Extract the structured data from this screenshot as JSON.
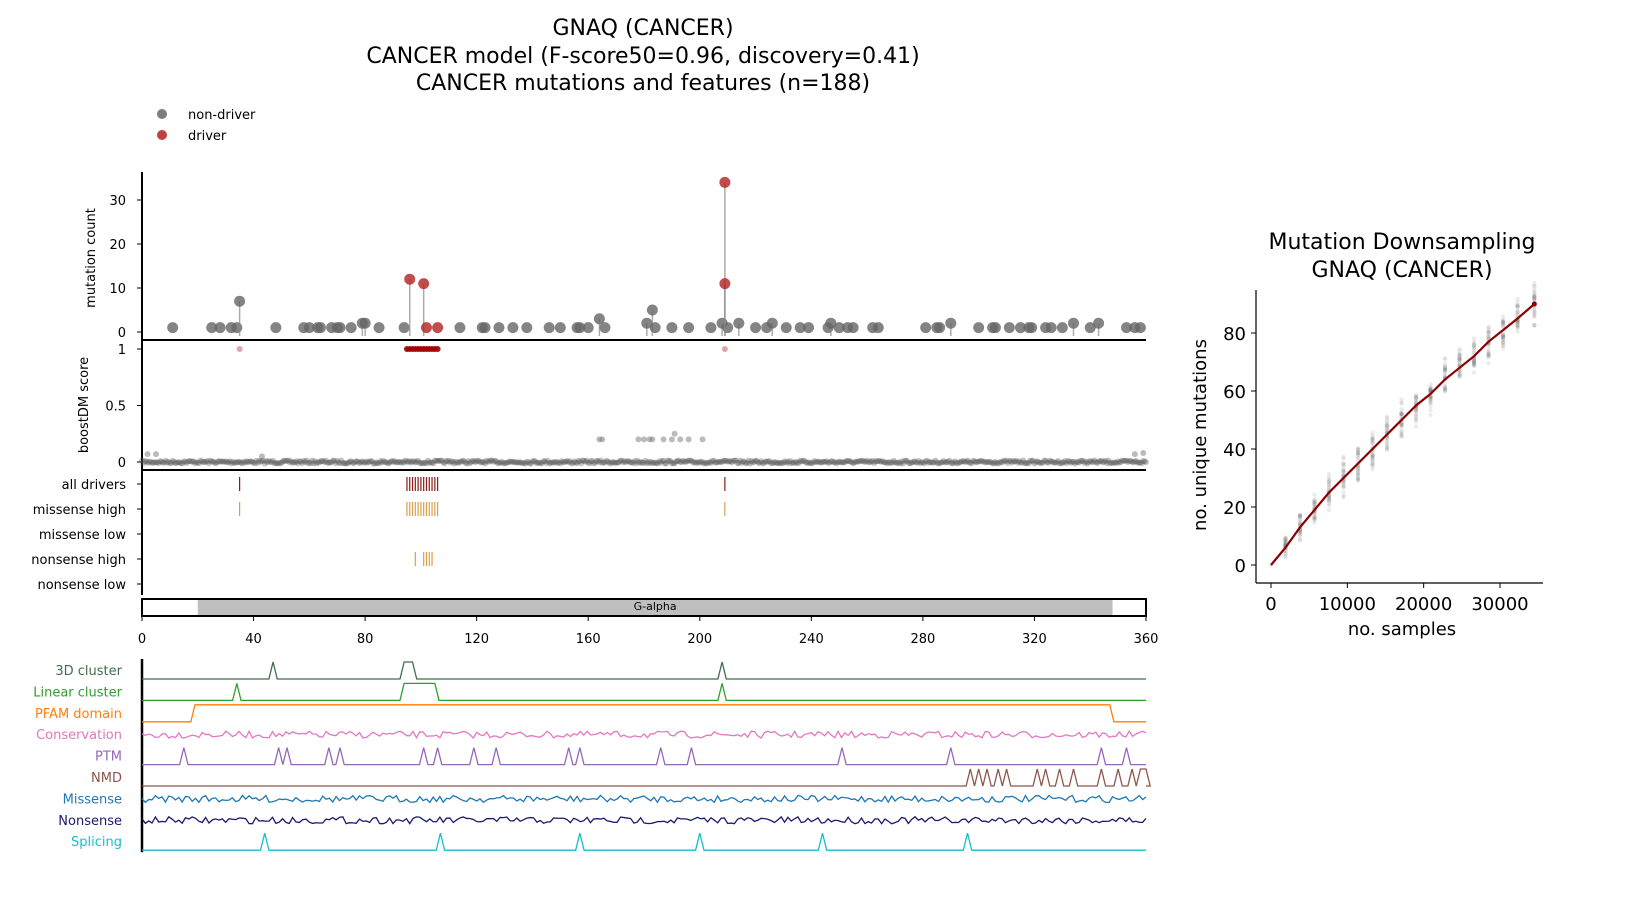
{
  "titles": [
    "GNAQ (CANCER)",
    "CANCER model (F-score50=0.96, discovery=0.41)",
    "CANCER mutations and features (n=188)"
  ],
  "legend": {
    "position": "top-left",
    "items": [
      {
        "label": "non-driver",
        "color": "#666666"
      },
      {
        "label": "driver",
        "color": "#b22222"
      }
    ]
  },
  "chart_data": [
    {
      "type": "scatter",
      "subtype": "lollipop",
      "ylabel": "mutation count",
      "xlim": [
        0,
        360
      ],
      "ylim": [
        0,
        36
      ],
      "yticks": [
        0,
        10,
        20,
        30
      ],
      "xticks": [
        0,
        40,
        80,
        120,
        160,
        200,
        240,
        280,
        320,
        360
      ],
      "series": [
        {
          "name": "non-driver",
          "color": "#666666",
          "points": [
            [
              11,
              1
            ],
            [
              25,
              1
            ],
            [
              28,
              1
            ],
            [
              32,
              1
            ],
            [
              34,
              1
            ],
            [
              35,
              7
            ],
            [
              48,
              1
            ],
            [
              58,
              1
            ],
            [
              60,
              1
            ],
            [
              63,
              1
            ],
            [
              64,
              1
            ],
            [
              68,
              1
            ],
            [
              70,
              1
            ],
            [
              71,
              1
            ],
            [
              75,
              1
            ],
            [
              79,
              2
            ],
            [
              80,
              2
            ],
            [
              85,
              1
            ],
            [
              94,
              1
            ],
            [
              114,
              1
            ],
            [
              122,
              1
            ],
            [
              123,
              1
            ],
            [
              128,
              1
            ],
            [
              133,
              1
            ],
            [
              138,
              1
            ],
            [
              146,
              1
            ],
            [
              150,
              1
            ],
            [
              156,
              1
            ],
            [
              157,
              1
            ],
            [
              160,
              1
            ],
            [
              164,
              3
            ],
            [
              166,
              1
            ],
            [
              181,
              2
            ],
            [
              183,
              5
            ],
            [
              184,
              1
            ],
            [
              190,
              1
            ],
            [
              196,
              1
            ],
            [
              204,
              1
            ],
            [
              208,
              2
            ],
            [
              210,
              1
            ],
            [
              214,
              2
            ],
            [
              220,
              1
            ],
            [
              224,
              1
            ],
            [
              226,
              2
            ],
            [
              231,
              1
            ],
            [
              236,
              1
            ],
            [
              239,
              1
            ],
            [
              246,
              1
            ],
            [
              247,
              2
            ],
            [
              250,
              1
            ],
            [
              253,
              1
            ],
            [
              255,
              1
            ],
            [
              262,
              1
            ],
            [
              264,
              1
            ],
            [
              281,
              1
            ],
            [
              285,
              1
            ],
            [
              286,
              1
            ],
            [
              290,
              2
            ],
            [
              300,
              1
            ],
            [
              305,
              1
            ],
            [
              306,
              1
            ],
            [
              311,
              1
            ],
            [
              315,
              1
            ],
            [
              318,
              1
            ],
            [
              319,
              1
            ],
            [
              324,
              1
            ],
            [
              326,
              1
            ],
            [
              330,
              1
            ],
            [
              334,
              2
            ],
            [
              340,
              1
            ],
            [
              343,
              2
            ],
            [
              353,
              1
            ],
            [
              356,
              1
            ],
            [
              358,
              1
            ]
          ]
        },
        {
          "name": "driver",
          "color": "#b22222",
          "points": [
            [
              96,
              12
            ],
            [
              101,
              11
            ],
            [
              102,
              1
            ],
            [
              106,
              1
            ],
            [
              209,
              34
            ],
            [
              209,
              11
            ]
          ]
        }
      ]
    },
    {
      "type": "scatter",
      "ylabel": "boostDM score",
      "xlim": [
        0,
        360
      ],
      "ylim": [
        0,
        1
      ],
      "yticks": [
        "0",
        "0.5",
        "1"
      ],
      "baseline_score": 0,
      "driver_points": [
        [
          35,
          1
        ],
        [
          95,
          1
        ],
        [
          96,
          1
        ],
        [
          97,
          1
        ],
        [
          98,
          1
        ],
        [
          99,
          1
        ],
        [
          100,
          1
        ],
        [
          101,
          1
        ],
        [
          102,
          1
        ],
        [
          103,
          1
        ],
        [
          104,
          1
        ],
        [
          105,
          1
        ],
        [
          106,
          1
        ],
        [
          209,
          1
        ]
      ],
      "elevated_points": [
        [
          164,
          0.2
        ],
        [
          165,
          0.2
        ],
        [
          178,
          0.2
        ],
        [
          180,
          0.2
        ],
        [
          182,
          0.2
        ],
        [
          183,
          0.2
        ],
        [
          187,
          0.2
        ],
        [
          190,
          0.2
        ],
        [
          191,
          0.25
        ],
        [
          193,
          0.2
        ],
        [
          196,
          0.2
        ],
        [
          201,
          0.2
        ],
        [
          2,
          0.07
        ],
        [
          5,
          0.07
        ],
        [
          43,
          0.05
        ],
        [
          356,
          0.07
        ],
        [
          359,
          0.08
        ]
      ]
    },
    {
      "type": "table",
      "subtype": "tick-tracks",
      "rows": [
        {
          "label": "all drivers",
          "color": "#8b1a1a",
          "positions": [
            35,
            95,
            96,
            97,
            98,
            99,
            100,
            101,
            102,
            103,
            104,
            105,
            106,
            209
          ]
        },
        {
          "label": "missense high",
          "color": "#d9a04a",
          "positions": [
            35,
            95,
            96,
            97,
            98,
            99,
            100,
            101,
            102,
            103,
            104,
            105,
            106,
            209
          ]
        },
        {
          "label": "missense low",
          "color": "#d9a04a",
          "positions": []
        },
        {
          "label": "nonsense high",
          "color": "#d9a04a",
          "positions": [
            98,
            101,
            102,
            103,
            104
          ]
        },
        {
          "label": "nonsense low",
          "color": "#d9a04a",
          "positions": []
        }
      ]
    },
    {
      "type": "bar",
      "subtype": "domain",
      "domains": [
        {
          "label": "G-alpha",
          "start": 20,
          "end": 348,
          "color": "#bfbfbf"
        }
      ],
      "xlim": [
        0,
        360
      ]
    },
    {
      "type": "line",
      "subtype": "feature-tracks",
      "xlim": [
        0,
        360
      ],
      "tracks": [
        {
          "label": "3D cluster",
          "color": "#3f6e4a",
          "kind": "peaks",
          "peaks": [
            [
              47,
              47
            ],
            [
              94,
              97
            ],
            [
              208,
              208
            ]
          ]
        },
        {
          "label": "Linear cluster",
          "color": "#2ca02c",
          "kind": "peaks",
          "peaks": [
            [
              34,
              34
            ],
            [
              94,
              105
            ],
            [
              208,
              208
            ]
          ]
        },
        {
          "label": "PFAM domain",
          "color": "#ff7f0e",
          "kind": "peaks",
          "peaks": [
            [
              19,
              347
            ]
          ]
        },
        {
          "label": "Conservation",
          "color": "#e377c2",
          "kind": "noise"
        },
        {
          "label": "PTM",
          "color": "#9467bd",
          "kind": "peaks",
          "peaks": [
            [
              15,
              15
            ],
            [
              49,
              49
            ],
            [
              52,
              52
            ],
            [
              67,
              67
            ],
            [
              71,
              71
            ],
            [
              101,
              101
            ],
            [
              106,
              106
            ],
            [
              119,
              119
            ],
            [
              127,
              127
            ],
            [
              153,
              153
            ],
            [
              157,
              157
            ],
            [
              186,
              186
            ],
            [
              197,
              197
            ],
            [
              251,
              251
            ],
            [
              290,
              290
            ],
            [
              344,
              344
            ],
            [
              353,
              353
            ]
          ]
        },
        {
          "label": "NMD",
          "color": "#8c564b",
          "kind": "peaks",
          "peaks": [
            [
              297,
              297
            ],
            [
              300,
              300
            ],
            [
              303,
              303
            ],
            [
              307,
              307
            ],
            [
              310,
              310
            ],
            [
              321,
              321
            ],
            [
              324,
              324
            ],
            [
              329,
              329
            ],
            [
              334,
              334
            ],
            [
              344,
              344
            ],
            [
              350,
              350
            ],
            [
              355,
              355
            ],
            [
              358,
              360
            ]
          ]
        },
        {
          "label": "Missense",
          "color": "#1f77b4",
          "kind": "noise"
        },
        {
          "label": "Nonsense",
          "color": "#1a1a6e",
          "kind": "noise"
        },
        {
          "label": "Splicing",
          "color": "#17becf",
          "kind": "peaks",
          "peaks": [
            [
              44,
              44
            ],
            [
              107,
              107
            ],
            [
              157,
              157
            ],
            [
              200,
              200
            ],
            [
              244,
              244
            ],
            [
              296,
              296
            ]
          ]
        }
      ]
    },
    {
      "type": "scatter",
      "title": [
        "Mutation Downsampling",
        "GNAQ (CANCER)"
      ],
      "xlabel": "no. samples",
      "ylabel": "no. unique mutations",
      "xlim": [
        -1500,
        35500
      ],
      "ylim": [
        -4,
        93
      ],
      "xticks": [
        0,
        10000,
        20000,
        30000
      ],
      "yticks": [
        0,
        20,
        40,
        60,
        80
      ],
      "line_color": "#8b0000",
      "mean_curve": [
        [
          0,
          0
        ],
        [
          1900,
          6
        ],
        [
          3800,
          13
        ],
        [
          5700,
          19
        ],
        [
          7600,
          25
        ],
        [
          9500,
          30
        ],
        [
          11400,
          35
        ],
        [
          13300,
          40
        ],
        [
          15200,
          45
        ],
        [
          17100,
          50
        ],
        [
          19000,
          55
        ],
        [
          20900,
          59
        ],
        [
          22800,
          64
        ],
        [
          24700,
          68
        ],
        [
          26600,
          72
        ],
        [
          28500,
          77
        ],
        [
          30400,
          81
        ],
        [
          32300,
          85
        ],
        [
          34500,
          90
        ]
      ],
      "replicate_spread": 8
    }
  ]
}
